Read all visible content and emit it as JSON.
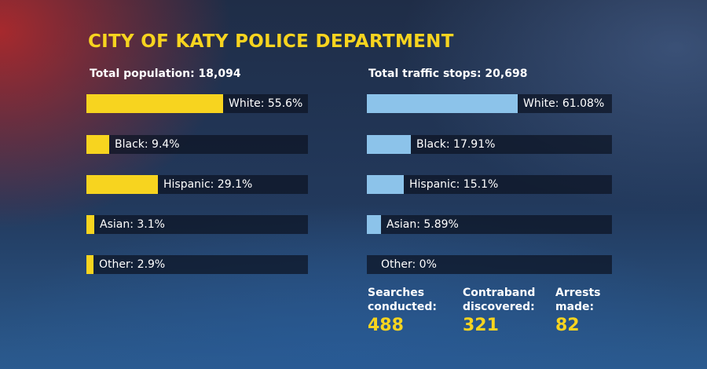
{
  "title": "CITY OF KATY POLICE DEPARTMENT",
  "colors": {
    "title": "#f7d41f",
    "population_bar": "#f7d41f",
    "stops_bar": "#8cc3ea"
  },
  "chart_data": [
    {
      "type": "bar",
      "title": "Total population: 18,094",
      "categories": [
        "White",
        "Black",
        "Hispanic",
        "Asian",
        "Other"
      ],
      "values": [
        55.6,
        9.4,
        29.1,
        3.1,
        2.9
      ],
      "labels": [
        "White: 55.6%",
        "Black: 9.4%",
        "Hispanic: 29.1%",
        "Asian: 3.1%",
        "Other: 2.9%"
      ],
      "ylim": [
        0,
        100
      ]
    },
    {
      "type": "bar",
      "title": "Total traffic stops: 20,698",
      "categories": [
        "White",
        "Black",
        "Hispanic",
        "Asian",
        "Other"
      ],
      "values": [
        61.08,
        17.91,
        15.1,
        5.89,
        0
      ],
      "labels": [
        "White: 61.08%",
        "Black: 17.91%",
        "Hispanic: 15.1%",
        "Asian: 5.89%",
        "Other: 0%"
      ],
      "ylim": [
        0,
        100
      ]
    }
  ],
  "stats": [
    {
      "label": "Searches\nconducted:",
      "value": "488"
    },
    {
      "label": "Contraband\ndiscovered:",
      "value": "321"
    },
    {
      "label": "Arrests\nmade:",
      "value": "82"
    }
  ]
}
